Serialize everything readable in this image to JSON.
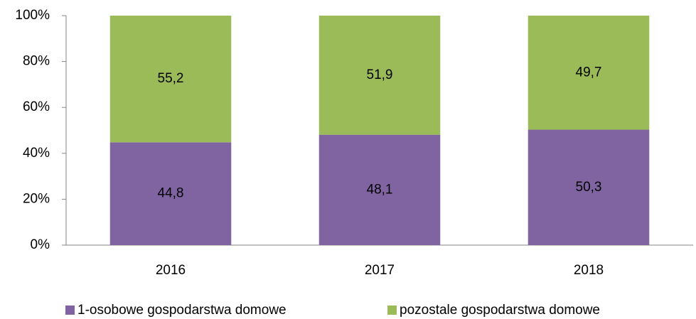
{
  "chart_data": {
    "type": "stacked_bar",
    "categories": [
      "2016",
      "2017",
      "2018"
    ],
    "series": [
      {
        "name": "1-osobowe gospodarstwa domowe",
        "color": "#8064a2",
        "values": [
          44.8,
          48.1,
          50.3
        ],
        "value_labels": [
          "44,8",
          "48,1",
          "50,3"
        ]
      },
      {
        "name": "pozostale gospodarstwa domowe",
        "color": "#9bbb59",
        "values": [
          55.2,
          51.9,
          49.7
        ],
        "value_labels": [
          "55,2",
          "51,9",
          "49,7"
        ]
      }
    ],
    "ylim": [
      0,
      100
    ],
    "yticks": [
      {
        "value": 0,
        "label": "0%"
      },
      {
        "value": 20,
        "label": "20%"
      },
      {
        "value": 40,
        "label": "40%"
      },
      {
        "value": 60,
        "label": "60%"
      },
      {
        "value": 80,
        "label": "80%"
      },
      {
        "value": 100,
        "label": "100%"
      }
    ],
    "grid": false,
    "legend": "bottom"
  }
}
